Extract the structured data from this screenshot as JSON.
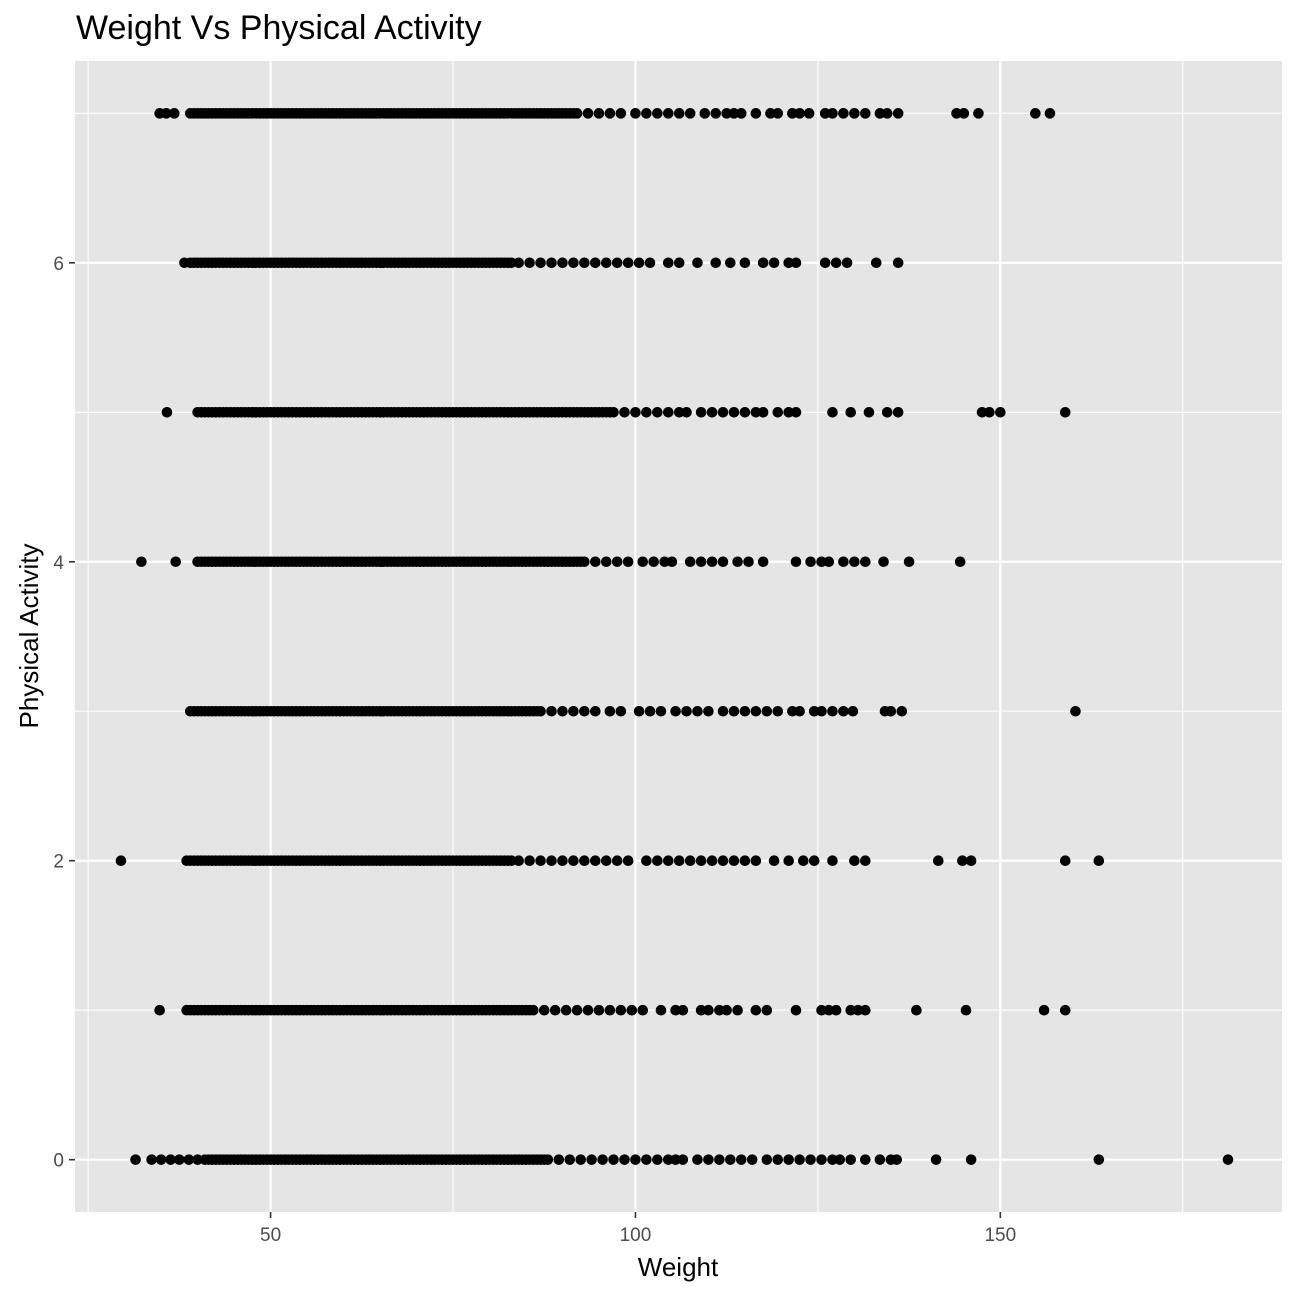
{
  "chart_data": {
    "type": "scatter",
    "title": "Weight Vs Physical Activity",
    "xlabel": "Weight",
    "ylabel": "Physical Activity",
    "xlim": [
      23.2,
      188.6
    ],
    "ylim": [
      -0.35,
      7.35
    ],
    "x_ticks": [
      50,
      100,
      150
    ],
    "x_tick_labels": [
      "50",
      "100",
      "150"
    ],
    "x_minor_ticks": [
      25,
      75,
      125,
      175
    ],
    "y_ticks": [
      0,
      2,
      4,
      6
    ],
    "y_tick_labels": [
      "0",
      "2",
      "4",
      "6"
    ],
    "y_minor_ticks": [
      1,
      3,
      5,
      7
    ],
    "grid": true,
    "point_color": "#000000",
    "panel_background": "#e5e5e5",
    "grid_color": "#ffffff",
    "series": [
      {
        "y": 7,
        "dense_min": 39.5,
        "dense_max": 92,
        "points": [
          34.8,
          35.7,
          36.8,
          39.0,
          93.5,
          95.0,
          96.5,
          98.0,
          100.0,
          101.5,
          103.0,
          104.5,
          106.0,
          107.5,
          109.5,
          111.0,
          112.5,
          113.5,
          114.5,
          116.5,
          118.5,
          119.5,
          121.5,
          122.5,
          123.8,
          126.0,
          127.0,
          128.5,
          130.0,
          131.5,
          133.5,
          134.5,
          136.0,
          144.0,
          145.0,
          147.0,
          154.8,
          156.8
        ]
      },
      {
        "y": 6,
        "dense_min": 39,
        "dense_max": 83,
        "points": [
          38.2,
          84.0,
          85.5,
          87.0,
          88.5,
          90.0,
          91.5,
          93.0,
          94.5,
          96.0,
          97.5,
          99.0,
          100.5,
          102.0,
          104.5,
          106.0,
          108.5,
          111.0,
          113.0,
          115.0,
          117.5,
          119.0,
          121.0,
          122.0,
          126.0,
          127.5,
          129.0,
          133.0,
          136.0
        ]
      },
      {
        "y": 5,
        "dense_min": 40,
        "dense_max": 97,
        "points": [
          35.8,
          98.5,
          100.0,
          101.5,
          103.0,
          104.5,
          106.0,
          107.0,
          109.0,
          110.5,
          112.0,
          113.5,
          115.0,
          116.5,
          117.5,
          119.5,
          121.0,
          122.0,
          127.0,
          129.5,
          132.0,
          134.5,
          136.0,
          147.5,
          148.5,
          150.0,
          158.9
        ]
      },
      {
        "y": 4,
        "dense_min": 40,
        "dense_max": 93,
        "points": [
          32.3,
          37.0,
          94.5,
          96.0,
          97.5,
          99.0,
          101.0,
          102.5,
          104.0,
          105.0,
          107.5,
          109.0,
          110.5,
          112.0,
          114.0,
          115.5,
          117.5,
          122.0,
          124.0,
          125.5,
          126.5,
          128.5,
          130.0,
          131.5,
          134.0,
          137.5,
          144.5
        ]
      },
      {
        "y": 3,
        "dense_min": 39,
        "dense_max": 87,
        "points": [
          88.5,
          90.0,
          91.5,
          93.0,
          94.5,
          96.5,
          98.0,
          100.5,
          102.0,
          103.5,
          105.5,
          107.0,
          108.5,
          110.0,
          112.0,
          113.5,
          115.0,
          116.5,
          118.0,
          119.5,
          121.5,
          122.5,
          124.5,
          125.5,
          127.0,
          128.5,
          129.8,
          134.2,
          135.0,
          136.5,
          160.3
        ]
      },
      {
        "y": 2,
        "dense_min": 38.5,
        "dense_max": 83,
        "points": [
          29.5,
          84.0,
          85.5,
          87.0,
          88.5,
          90.0,
          91.5,
          93.0,
          94.5,
          96.0,
          97.5,
          99.0,
          101.5,
          103.0,
          104.5,
          106.0,
          107.5,
          109.0,
          110.5,
          112.0,
          113.5,
          115.0,
          116.5,
          119.0,
          121.0,
          123.0,
          124.5,
          127.0,
          130.0,
          131.5,
          141.5,
          144.8,
          146.0,
          158.9,
          163.5
        ]
      },
      {
        "y": 1,
        "dense_min": 38.5,
        "dense_max": 86,
        "points": [
          34.8,
          87.5,
          89.0,
          90.5,
          92.0,
          93.5,
          95.0,
          96.5,
          98.0,
          99.5,
          101.0,
          103.5,
          105.5,
          106.5,
          109.0,
          110.0,
          111.5,
          112.5,
          114.0,
          116.5,
          118.0,
          122.0,
          125.5,
          126.5,
          127.5,
          129.5,
          130.5,
          131.5,
          138.5,
          145.3,
          156.0,
          158.9
        ]
      },
      {
        "y": 0,
        "dense_min": 41,
        "dense_max": 88,
        "points": [
          31.5,
          33.7,
          35.0,
          36.3,
          37.5,
          38.8,
          40.0,
          89.5,
          91.0,
          92.5,
          94.0,
          95.5,
          97.0,
          98.5,
          100.0,
          101.5,
          103.0,
          104.5,
          105.5,
          106.5,
          108.5,
          110.0,
          111.5,
          113.0,
          114.5,
          116.0,
          118.0,
          119.5,
          121.0,
          122.5,
          124.0,
          125.5,
          127.0,
          128.0,
          129.5,
          131.5,
          133.5,
          135.0,
          135.8,
          141.2,
          146.0,
          163.5,
          181.2
        ]
      }
    ]
  }
}
